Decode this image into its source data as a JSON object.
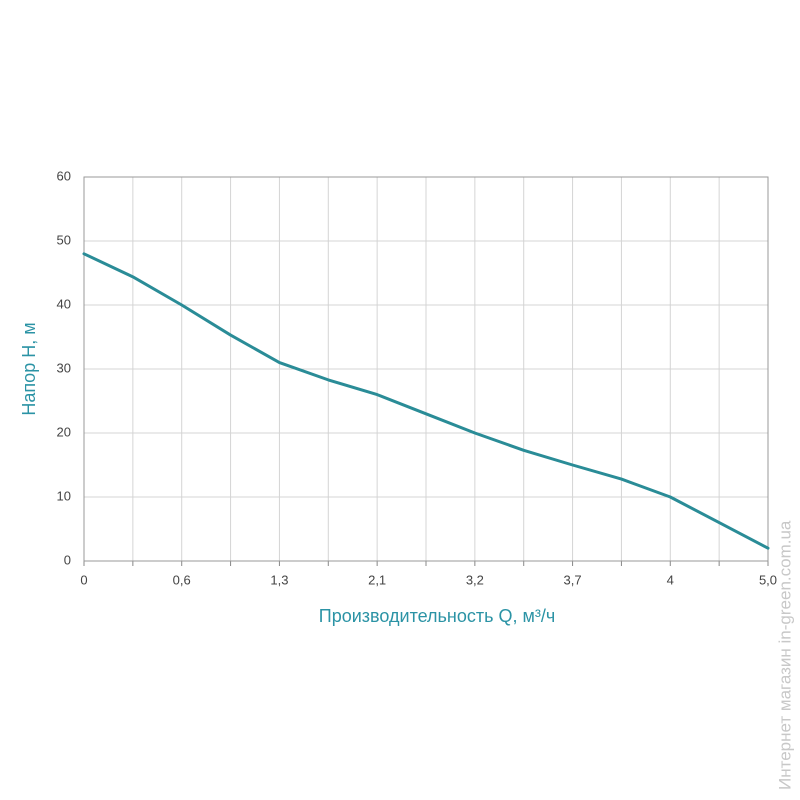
{
  "chart_data": {
    "type": "line",
    "y_label": "Напор H, м",
    "x_label": "Производительность Q, м³/ч",
    "watermark": "Интернет магазин in-green.com.ua",
    "categories": [
      "0",
      null,
      "0,6",
      null,
      "1,3",
      null,
      "2,1",
      null,
      "3,2",
      null,
      "3,7",
      null,
      "4",
      null,
      "5,0"
    ],
    "series": [
      {
        "color": "#2a8c97",
        "values": [
          48,
          44.4,
          40,
          35.3,
          31,
          28.3,
          26,
          23,
          20,
          17.3,
          15,
          12.8,
          10,
          6,
          2
        ]
      }
    ],
    "ylim": [
      0,
      60
    ],
    "yticks": [
      0,
      10,
      20,
      30,
      40,
      50,
      60
    ],
    "grid": true
  }
}
